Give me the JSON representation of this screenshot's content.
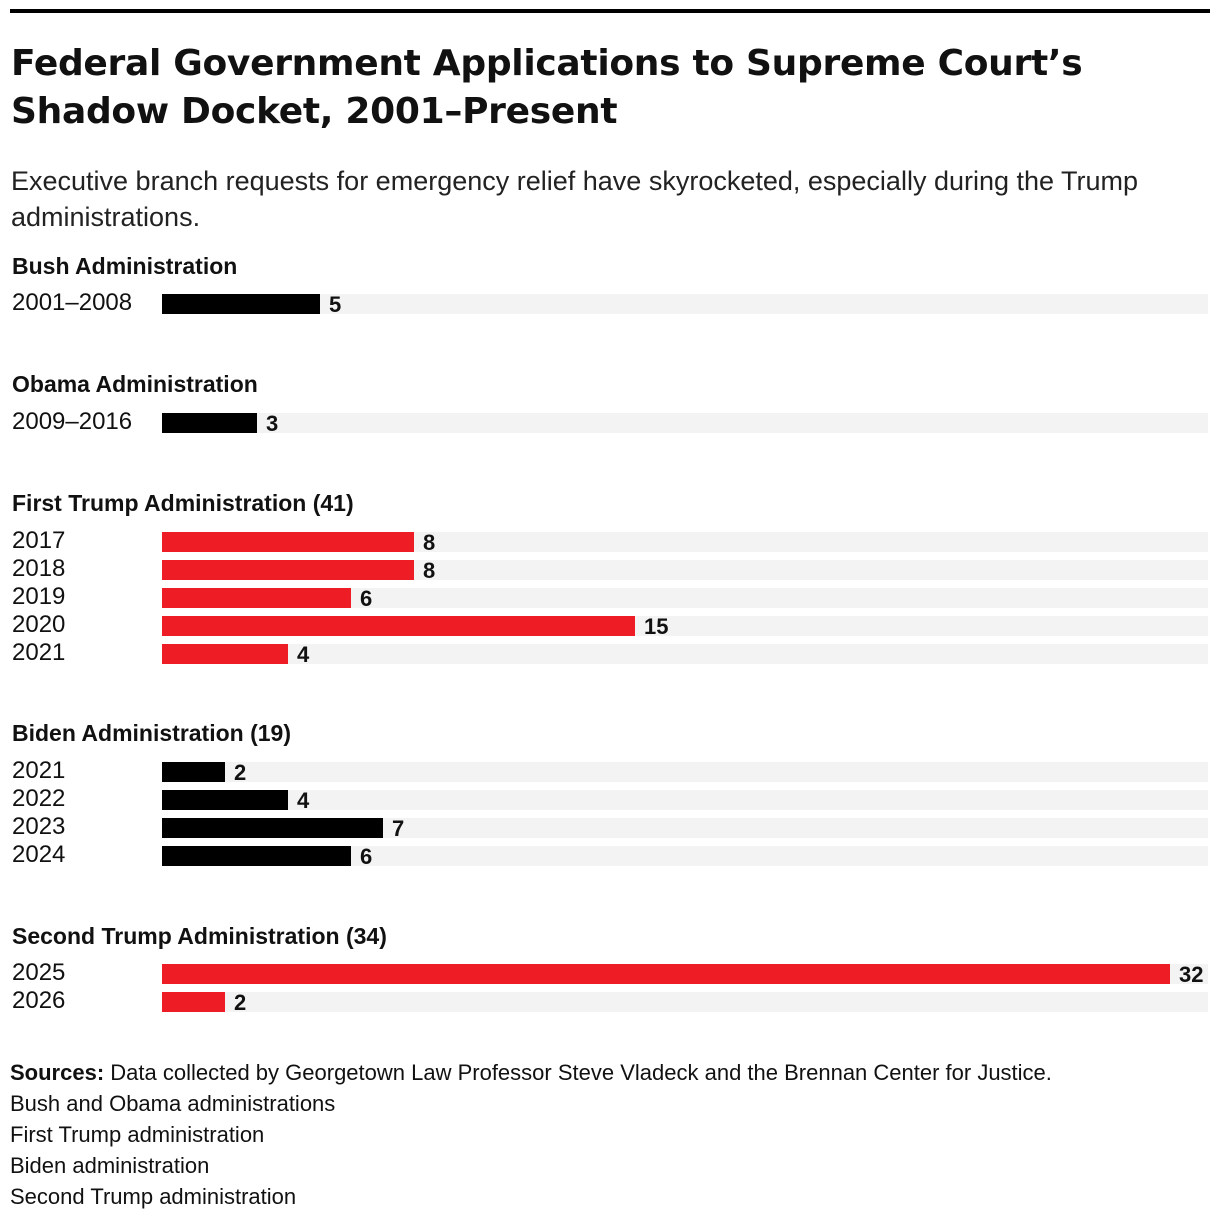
{
  "colors": {
    "default_bar": "#000000",
    "trump_bar": "#ee1c25",
    "track": "#f3f3f3"
  },
  "header": {
    "title": "Federal Government Applications to Supreme Court’s Shadow Docket, 2001–Present",
    "subtitle": "Executive branch requests for emergency relief have skyrocketed, especially during the Trump administrations."
  },
  "chart_data": {
    "type": "bar",
    "orientation": "horizontal",
    "xlim": [
      0,
      33
    ],
    "grid": false,
    "legend": "none",
    "groups": [
      {
        "label": "Bush Administration",
        "color": "#000000",
        "rows": [
          {
            "category": "2001–2008",
            "value": 5
          }
        ]
      },
      {
        "label": "Obama Administration",
        "color": "#000000",
        "rows": [
          {
            "category": "2009–2016",
            "value": 3
          }
        ]
      },
      {
        "label": "First Trump Administration (41)",
        "color": "#ee1c25",
        "rows": [
          {
            "category": "2017",
            "value": 8
          },
          {
            "category": "2018",
            "value": 8
          },
          {
            "category": "2019",
            "value": 6
          },
          {
            "category": "2020",
            "value": 15
          },
          {
            "category": "2021",
            "value": 4
          }
        ]
      },
      {
        "label": "Biden Administration (19)",
        "color": "#000000",
        "rows": [
          {
            "category": "2021",
            "value": 2
          },
          {
            "category": "2022",
            "value": 4
          },
          {
            "category": "2023",
            "value": 7
          },
          {
            "category": "2024",
            "value": 6
          }
        ]
      },
      {
        "label": "Second Trump Administration (34)",
        "color": "#ee1c25",
        "rows": [
          {
            "category": "2025",
            "value": 32
          },
          {
            "category": "2026",
            "value": 2
          }
        ]
      }
    ]
  },
  "sources": {
    "heading": "Sources:",
    "text": "Data collected by Georgetown Law Professor Steve Vladeck and the Brennan Center for Justice.",
    "links": [
      "Bush and Obama administrations",
      "First Trump administration",
      "Biden administration",
      "Second Trump administration"
    ]
  }
}
